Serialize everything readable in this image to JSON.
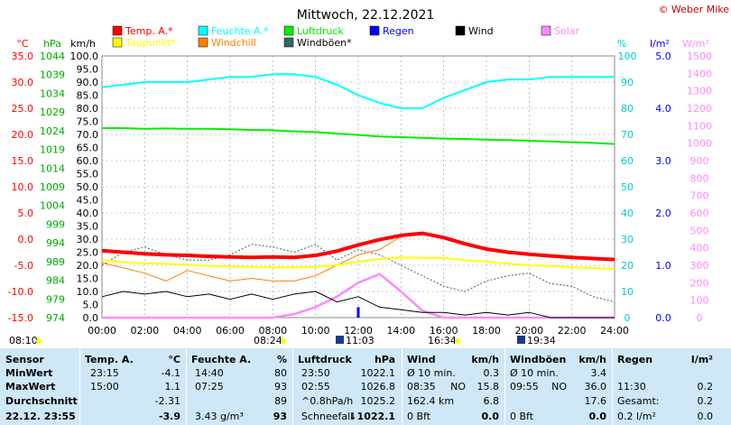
{
  "title": "Mittwoch, 22.12.2021",
  "copyright": "© Weber Mike",
  "axes": {
    "temp_unit": "°C",
    "hpa_unit": "hPa",
    "kmh_unit": "km/h",
    "pct_unit": "%",
    "rain_unit": "l/m²",
    "solar_unit": "W/m²",
    "temp_ticks": [
      "35.0",
      "30.0",
      "25.0",
      "20.0",
      "15.0",
      "10.0",
      "5.0",
      "0.0",
      "-5.0",
      "-10.0",
      "-15.0"
    ],
    "hpa_ticks": [
      "1044",
      "1039",
      "1034",
      "1029",
      "1024",
      "1019",
      "1014",
      "1009",
      "1004",
      "999",
      "994",
      "989",
      "984",
      "979",
      "974"
    ],
    "kmh_ticks": [
      "100.0",
      "95.0",
      "90.0",
      "85.0",
      "80.0",
      "75.0",
      "70.0",
      "65.0",
      "60.0",
      "55.0",
      "50.0",
      "45.0",
      "40.0",
      "35.0",
      "30.0",
      "25.0",
      "20.0",
      "15.0",
      "10.0",
      "5.0",
      "0.0"
    ],
    "pct_ticks": [
      "100",
      "90",
      "80",
      "70",
      "60",
      "50",
      "40",
      "30",
      "20",
      "10",
      "0"
    ],
    "rain_ticks": [
      "5.0",
      "4.0",
      "3.0",
      "2.0",
      "1.0",
      "0.0"
    ],
    "solar_ticks": [
      "1500",
      "1400",
      "1300",
      "1200",
      "1100",
      "1000",
      "900",
      "800",
      "700",
      "600",
      "500",
      "400",
      "300",
      "200",
      "100",
      "0"
    ],
    "x_ticks": [
      "00:00",
      "02:00",
      "04:00",
      "06:00",
      "08:00",
      "10:00",
      "12:00",
      "14:00",
      "16:00",
      "18:00",
      "20:00",
      "22:00",
      "24:00"
    ]
  },
  "legend": [
    {
      "label": "Temp. A.*",
      "color": "#ff0000"
    },
    {
      "label": "Feuchte A.*",
      "color": "#00ffff"
    },
    {
      "label": "Luftdruck",
      "color": "#00ee00"
    },
    {
      "label": "Regen",
      "color": "#0000ff"
    },
    {
      "label": "Wind",
      "color": "#000000"
    },
    {
      "label": "Solar",
      "color": "#ff88ff"
    },
    {
      "label": "Taupunkt*",
      "color": "#ffff00"
    },
    {
      "label": "Windchill",
      "color": "#ff8000"
    },
    {
      "label": "Windböen*",
      "color": "#336666"
    }
  ],
  "sun_events": {
    "sunrise_label": "08:10",
    "sunrise_shown": "08:24",
    "moon1": "11:03",
    "sunset": "16:34",
    "moon2": "19:34"
  },
  "chart_data": {
    "type": "line",
    "x": [
      0,
      1,
      2,
      3,
      4,
      5,
      6,
      7,
      8,
      9,
      10,
      11,
      12,
      13,
      14,
      15,
      16,
      17,
      18,
      19,
      20,
      21,
      22,
      23,
      24
    ],
    "series": [
      {
        "name": "Temp. A.*",
        "unit": "°C",
        "values": [
          -2.2,
          -2.5,
          -2.8,
          -3.0,
          -3.1,
          -3.3,
          -3.4,
          -3.5,
          -3.4,
          -3.5,
          -3.1,
          -2.3,
          -1.1,
          -0.1,
          0.7,
          1.1,
          0.3,
          -0.9,
          -1.9,
          -2.5,
          -2.9,
          -3.2,
          -3.5,
          -3.7,
          -3.9
        ]
      },
      {
        "name": "Feuchte A.*",
        "unit": "%",
        "values": [
          88,
          89,
          90,
          90,
          90,
          91,
          92,
          92,
          93,
          93,
          92,
          89,
          85,
          82,
          80,
          80,
          84,
          87,
          90,
          91,
          91,
          92,
          92,
          92,
          92
        ]
      },
      {
        "name": "Luftdruck",
        "unit": "hPa",
        "values": [
          1026.5,
          1026.5,
          1026.3,
          1026.4,
          1026.3,
          1026.3,
          1026.2,
          1026.0,
          1025.9,
          1025.6,
          1025.4,
          1025.0,
          1024.6,
          1024.2,
          1024.0,
          1023.8,
          1023.6,
          1023.5,
          1023.3,
          1023.2,
          1023.0,
          1022.8,
          1022.6,
          1022.4,
          1022.1
        ]
      },
      {
        "name": "Taupunkt*",
        "unit": "°C",
        "values": [
          -4.0,
          -4.4,
          -4.6,
          -4.7,
          -4.9,
          -5.1,
          -5.2,
          -5.3,
          -5.4,
          -5.4,
          -5.3,
          -5.0,
          -4.3,
          -3.8,
          -3.5,
          -3.6,
          -3.6,
          -4.0,
          -4.3,
          -4.7,
          -5.0,
          -5.1,
          -5.4,
          -5.5,
          -5.7
        ]
      },
      {
        "name": "Windchill",
        "unit": "°C",
        "values": [
          -4.5,
          -5.5,
          -6.5,
          -8,
          -6,
          -7,
          -8,
          -7.5,
          -8,
          -8,
          -7,
          -5,
          -3,
          -2,
          0.5,
          1.0,
          0.3,
          -0.9,
          -1.9,
          -2.5,
          -2.9,
          -3.2,
          -3.5,
          -3.7,
          -3.9
        ]
      },
      {
        "name": "Wind",
        "unit": "km/h",
        "values": [
          8,
          10,
          9,
          10,
          8,
          9,
          7,
          9,
          7,
          9,
          10,
          6,
          8,
          4,
          3,
          2,
          2,
          1,
          2,
          1,
          2,
          0,
          0,
          0,
          0
        ]
      },
      {
        "name": "Windböen*",
        "unit": "km/h",
        "values": [
          20,
          25,
          27,
          24,
          22,
          22,
          24,
          28,
          27,
          25,
          28,
          22,
          26,
          24,
          20,
          16,
          12,
          10,
          14,
          16,
          17,
          13,
          12,
          8,
          6
        ]
      },
      {
        "name": "Solar",
        "unit": "W/m²",
        "values": [
          0,
          0,
          0,
          0,
          0,
          0,
          0,
          0,
          0,
          20,
          60,
          120,
          200,
          250,
          150,
          40,
          0,
          0,
          0,
          0,
          0,
          0,
          0,
          0,
          0
        ]
      },
      {
        "name": "Regen",
        "unit": "l/m²",
        "values": [
          0,
          0,
          0,
          0,
          0,
          0,
          0,
          0,
          0,
          0,
          0,
          0,
          0.2,
          0,
          0,
          0,
          0,
          0,
          0,
          0,
          0,
          0,
          0,
          0,
          0
        ]
      }
    ]
  },
  "table": {
    "headers": [
      "Sensor",
      "Temp. A.",
      "°C",
      "Feuchte A.",
      "%",
      "Luftdruck",
      "hPa",
      "Wind",
      "km/h",
      "Windböen",
      "km/h",
      "Regen",
      "l/m²"
    ],
    "rows": [
      {
        "label": "MinWert",
        "temp_time": "23:15",
        "temp_val": "-4.1",
        "hum_time": "14:40",
        "hum_val": "80",
        "pres_time": "23:50",
        "pres_val": "1022.1",
        "wind_desc": "Ø 10 min.",
        "wind_val": "0.3",
        "gust_desc": "Ø 10 min.",
        "gust_val": "3.4",
        "rain_desc": "",
        "rain_val": ""
      },
      {
        "label": "MaxWert",
        "temp_time": "15:00",
        "temp_val": "1.1",
        "hum_time": "07:25",
        "hum_val": "93",
        "pres_time": "02:55",
        "pres_val": "1026.8",
        "wind_desc": "08:35",
        "wind_dir": "NO",
        "wind_val": "15.8",
        "gust_desc": "09:55",
        "gust_dir": "NO",
        "gust_val": "36.0",
        "rain_desc": "11:30",
        "rain_val": "0.2"
      },
      {
        "label": "Durchschnitt",
        "temp_time": "",
        "temp_val": "-2.31",
        "hum_time": "",
        "hum_val": "89",
        "pres_time": "^0.8hPa/h",
        "pres_val": "1025.2",
        "wind_desc": "162.4 km",
        "wind_val": "6.8",
        "gust_desc": "",
        "gust_val": "17.6",
        "rain_desc": "Gesamt:",
        "rain_val": "0.2"
      },
      {
        "label": "22.12. 23:55",
        "temp_time": "",
        "temp_val": "-3.9",
        "hum_time": "3.43 g/m³",
        "hum_val": "93",
        "pres_time": "Schneefall",
        "pres_val": "↓1022.1",
        "wind_desc": "0 Bft",
        "wind_val": "0.0",
        "gust_desc": "0 Bft",
        "gust_val": "0.0",
        "rain_desc": "0.2 l/m²",
        "rain_val": "0.0"
      }
    ]
  }
}
